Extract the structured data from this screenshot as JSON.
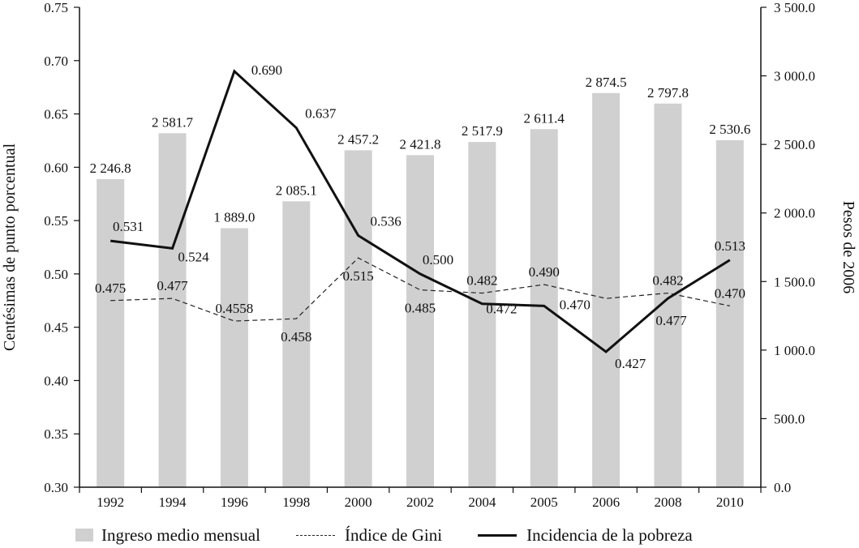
{
  "chart_data": {
    "type": "bar",
    "categories": [
      "1992",
      "1994",
      "1996",
      "1998",
      "2000",
      "2002",
      "2004",
      "2005",
      "2006",
      "2008",
      "2010"
    ],
    "series": [
      {
        "name": "Ingreso medio mensual",
        "type": "bar",
        "axis": "right",
        "values": [
          2246.8,
          2581.7,
          1889.0,
          2085.1,
          2457.2,
          2421.8,
          2517.9,
          2611.4,
          2874.5,
          2797.8,
          2530.6
        ],
        "labels": [
          "2 246.8",
          "2 581.7",
          "1 889.0",
          "2 085.1",
          "2 457.2",
          "2 421.8",
          "2 517.9",
          "2 611.4",
          "2 874.5",
          "2 797.8",
          "2 530.6"
        ],
        "color": "#d0d0d0"
      },
      {
        "name": "Índice de Gini",
        "type": "line",
        "style": "dashed",
        "axis": "left",
        "values": [
          0.475,
          0.477,
          0.4558,
          0.458,
          0.515,
          0.485,
          0.482,
          0.49,
          0.477,
          0.482,
          0.47
        ],
        "labels": [
          "0.475",
          "0.477",
          "0.4558",
          "0.458",
          "0.515",
          "0.485",
          "0.482",
          "0.490",
          "0.477",
          "0.482",
          "0.470"
        ],
        "color": "#222222"
      },
      {
        "name": "Incidencia de la pobreza",
        "type": "line",
        "style": "solid",
        "axis": "left",
        "values": [
          0.531,
          0.524,
          0.69,
          0.637,
          0.536,
          0.5,
          0.472,
          0.47,
          0.427,
          0.477,
          0.513
        ],
        "labels": [
          "0.531",
          "0.524",
          "0.690",
          "0.637",
          "0.536",
          "0.500",
          "0.472",
          "0.470",
          "0.427",
          "0.477",
          "0.513"
        ],
        "color": "#111111"
      }
    ],
    "y_left": {
      "label": "Centésimas de punto porcentual",
      "ylim": [
        0.3,
        0.75
      ],
      "ticks": [
        "0.30",
        "0.35",
        "0.40",
        "0.45",
        "0.50",
        "0.55",
        "0.60",
        "0.65",
        "0.70",
        "0.75"
      ]
    },
    "y_right": {
      "label": "Pesos de 2006",
      "ylim": [
        0,
        3500
      ],
      "ticks": [
        "0.0",
        "500.0",
        "1 000.0",
        "1 500.0",
        "2 000.0",
        "2 500.0",
        "3 000.0",
        "3 500.0"
      ]
    },
    "grid": false,
    "legend_position": "bottom"
  }
}
